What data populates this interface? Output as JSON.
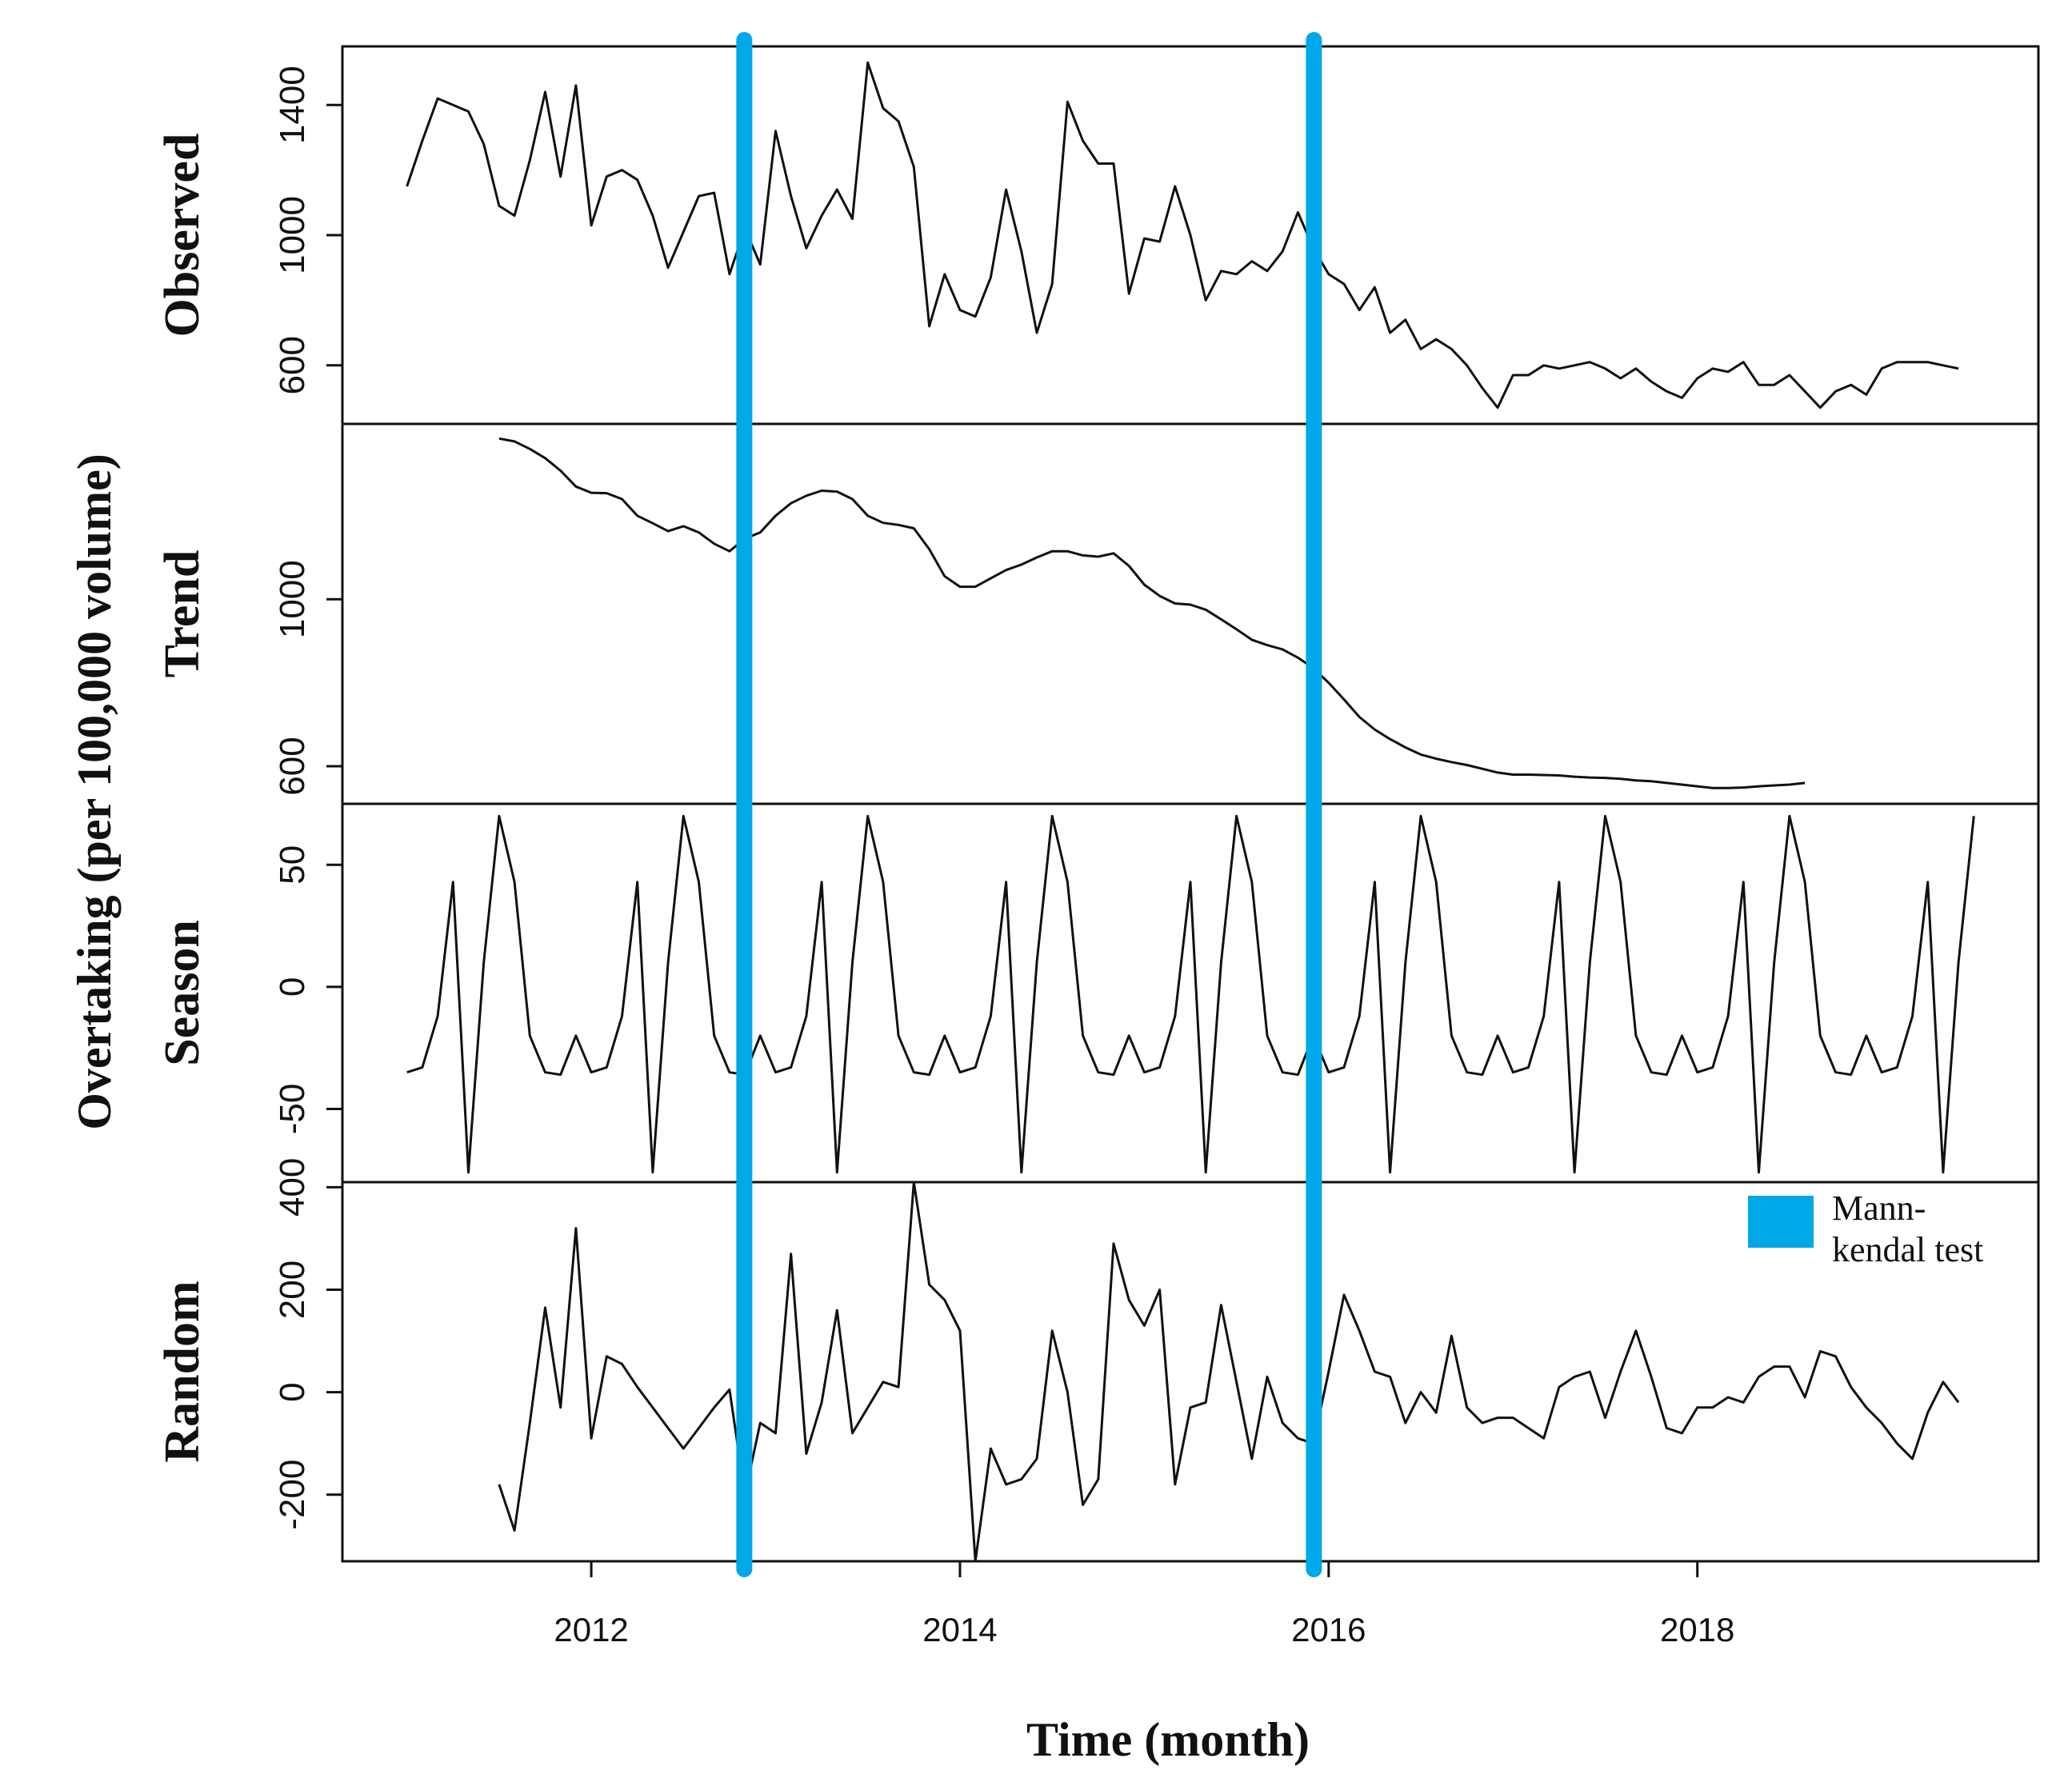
{
  "chart_data": {
    "type": "line",
    "title": "",
    "xlabel": "Time (month)",
    "ylabel": "Overtaking (per 100,000 volume)",
    "xlim": [
      2010.65,
      2019.85
    ],
    "x_ticks": [
      2012,
      2014,
      2016,
      2018
    ],
    "x_tick_labels": [
      "2012",
      "2014",
      "2016",
      "2018"
    ],
    "markers": {
      "color": "#00a8e8",
      "positions": [
        2012.83,
        2015.92
      ],
      "legend_label": "Mann-\nkendal test"
    },
    "panels": [
      {
        "name": "Observed",
        "ylim": [
          420,
          1580
        ],
        "y_ticks": [
          600,
          1000,
          1400
        ],
        "y_tick_labels": [
          "600",
          "1000",
          "1400"
        ],
        "start": 2011.0,
        "step": 0.0833333,
        "values": [
          1150,
          1290,
          1420,
          1400,
          1380,
          1280,
          1090,
          1060,
          1230,
          1440,
          1180,
          1460,
          1030,
          1180,
          1200,
          1170,
          1060,
          900,
          1010,
          1120,
          1130,
          880,
          1020,
          910,
          1320,
          1120,
          960,
          1060,
          1140,
          1050,
          1530,
          1390,
          1350,
          1210,
          720,
          880,
          770,
          750,
          870,
          1140,
          950,
          700,
          850,
          1410,
          1290,
          1220,
          1220,
          820,
          990,
          980,
          1150,
          1000,
          800,
          890,
          880,
          920,
          890,
          950,
          1070,
          960,
          880,
          850,
          770,
          840,
          700,
          740,
          650,
          680,
          650,
          600,
          530,
          470,
          570,
          570,
          600,
          590,
          600,
          610,
          590,
          560,
          590,
          550,
          520,
          500,
          560,
          590,
          580,
          610,
          540,
          540,
          570,
          520,
          470,
          520,
          540,
          510,
          590,
          610,
          610,
          610,
          600,
          590
        ]
      },
      {
        "name": "Trend",
        "ylim": [
          510,
          1420
        ],
        "y_ticks": [
          600,
          1000
        ],
        "y_tick_labels": [
          "600",
          "1000"
        ],
        "start": 2011.5,
        "step": 0.0833333,
        "values": [
          1385,
          1378,
          1360,
          1338,
          1308,
          1270,
          1255,
          1254,
          1240,
          1200,
          1182,
          1163,
          1175,
          1160,
          1133,
          1115,
          1145,
          1160,
          1200,
          1230,
          1248,
          1260,
          1258,
          1240,
          1200,
          1183,
          1178,
          1170,
          1120,
          1055,
          1030,
          1030,
          1050,
          1070,
          1083,
          1100,
          1115,
          1115,
          1105,
          1102,
          1110,
          1080,
          1035,
          1008,
          990,
          987,
          975,
          952,
          928,
          903,
          890,
          880,
          860,
          835,
          800,
          760,
          718,
          688,
          665,
          645,
          628,
          618,
          610,
          603,
          594,
          585,
          580,
          580,
          579,
          578,
          575,
          573,
          572,
          570,
          566,
          564,
          560,
          556,
          552,
          548,
          548,
          549,
          552,
          554,
          556,
          560
        ]
      },
      {
        "name": "Season",
        "ylim": [
          -80,
          75
        ],
        "y_ticks": [
          -50,
          0,
          50
        ],
        "y_tick_labels": [
          "-50",
          "0",
          "50"
        ],
        "start": 2011.0,
        "step": 0.0833333,
        "period": 12,
        "values": [
          -35,
          -33,
          -12,
          43,
          -76,
          10,
          70,
          43,
          -20,
          -35,
          -36,
          -20
        ],
        "n_points": 103
      },
      {
        "name": "Random",
        "ylim": [
          -330,
          410
        ],
        "y_ticks": [
          -200,
          0,
          200,
          400
        ],
        "y_tick_labels": [
          "-200",
          "0",
          "200",
          "400"
        ],
        "start": 2011.5,
        "step": 0.0833333,
        "values": [
          -180,
          -270,
          -60,
          165,
          -30,
          320,
          -90,
          70,
          55,
          10,
          -30,
          -70,
          -110,
          -70,
          -30,
          5,
          -200,
          -60,
          -80,
          270,
          -120,
          -20,
          160,
          -80,
          -30,
          20,
          10,
          410,
          210,
          180,
          120,
          -330,
          -110,
          -180,
          -170,
          -130,
          120,
          0,
          -220,
          -170,
          290,
          180,
          130,
          200,
          -180,
          -30,
          -20,
          170,
          20,
          -130,
          30,
          -60,
          -90,
          -100,
          40,
          190,
          120,
          40,
          30,
          -60,
          0,
          -40,
          110,
          -30,
          -60,
          -50,
          -50,
          -70,
          -90,
          10,
          30,
          40,
          -50,
          40,
          120,
          30,
          -70,
          -80,
          -30,
          -30,
          -10,
          -20,
          30,
          50,
          50,
          -10,
          80,
          70,
          10,
          -30,
          -60,
          -100,
          -130,
          -40,
          20,
          -20
        ]
      }
    ]
  }
}
